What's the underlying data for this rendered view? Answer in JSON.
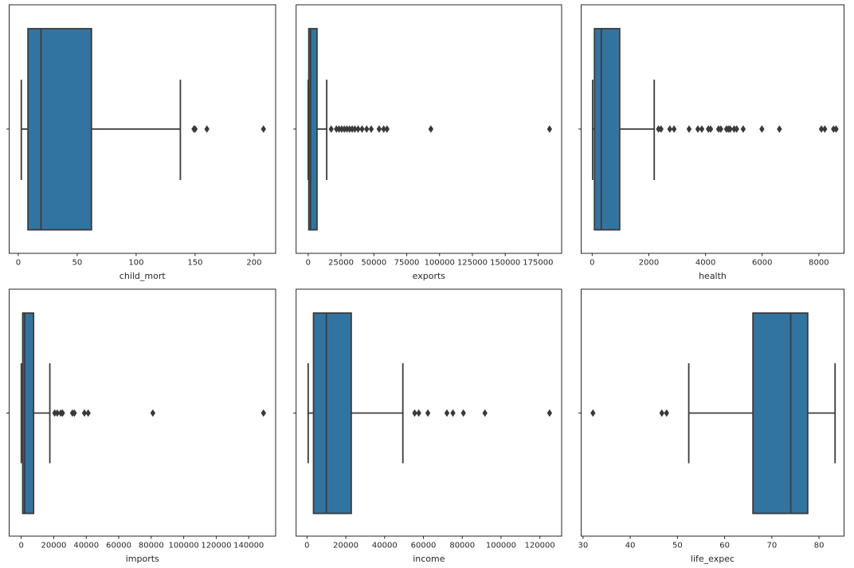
{
  "figure": {
    "background": "#ffffff",
    "grid": {
      "rows": 2,
      "cols": 3
    },
    "colors": {
      "box_fill": "#3274a1",
      "box_edge": "#3b3b3b",
      "whisker": "#3b3b3b",
      "outlier": "#3a3a3a",
      "spine": "#262626",
      "tick_text": "#262626"
    }
  },
  "chart_data": [
    {
      "type": "box",
      "orientation": "horizontal",
      "xlabel": "child_mort",
      "xlim": [
        -7.7,
        218.3
      ],
      "xticks": [
        0,
        50,
        100,
        150,
        200
      ],
      "box": {
        "whisker_low": 2.6,
        "q1": 8.25,
        "median": 19.3,
        "q3": 62.1,
        "whisker_high": 137.5
      },
      "outliers": [
        149,
        150,
        160,
        208
      ]
    },
    {
      "type": "box",
      "orientation": "horizontal",
      "xlabel": "exports",
      "xlim": [
        -9200,
        192950
      ],
      "xticks": [
        0,
        25000,
        50000,
        75000,
        100000,
        125000,
        150000,
        175000
      ],
      "box": {
        "whisker_low": 10,
        "q1": 450,
        "median": 1800,
        "q3": 6700,
        "whisker_high": 14100
      },
      "outliers": [
        17500,
        21500,
        23500,
        25500,
        27500,
        29500,
        31500,
        33500,
        35500,
        38000,
        41000,
        44500,
        48000,
        54000,
        57500,
        60000,
        93400,
        183750
      ]
    },
    {
      "type": "box",
      "orientation": "horizontal",
      "xlabel": "health",
      "xlim": [
        -390,
        8890
      ],
      "xticks": [
        0,
        2000,
        4000,
        6000,
        8000
      ],
      "box": {
        "whisker_low": 15,
        "q1": 80,
        "median": 320,
        "q3": 970,
        "whisker_high": 2190
      },
      "outliers": [
        2340,
        2430,
        2740,
        2890,
        3420,
        3730,
        3870,
        4100,
        4180,
        4460,
        4540,
        4740,
        4810,
        4870,
        5010,
        5100,
        5330,
        5990,
        6610,
        8090,
        8210,
        8520,
        8610
      ]
    },
    {
      "type": "box",
      "orientation": "horizontal",
      "xlabel": "imports",
      "xlim": [
        -7430,
        156560
      ],
      "xticks": [
        0,
        20000,
        40000,
        60000,
        80000,
        100000,
        120000,
        140000
      ],
      "box": {
        "whisker_low": 30,
        "q1": 900,
        "median": 2150,
        "q3": 7600,
        "whisker_high": 17600
      },
      "outliers": [
        20600,
        22200,
        24300,
        25400,
        31500,
        32700,
        38900,
        41200,
        81000,
        149100
      ]
    },
    {
      "type": "box",
      "orientation": "horizontal",
      "xlabel": "income",
      "xlim": [
        -5610,
        131220
      ],
      "xticks": [
        0,
        20000,
        40000,
        60000,
        80000,
        100000,
        120000
      ],
      "box": {
        "whisker_low": 609,
        "q1": 3355,
        "median": 9960,
        "q3": 22800,
        "whisker_high": 49400
      },
      "outliers": [
        55500,
        57600,
        62300,
        72100,
        75200,
        80600,
        91700,
        125000
      ]
    },
    {
      "type": "box",
      "orientation": "horizontal",
      "xlabel": "life_expec",
      "xlim": [
        29.6,
        85.3
      ],
      "xticks": [
        30,
        40,
        50,
        60,
        70,
        80
      ],
      "box": {
        "whisker_low": 52.4,
        "q1": 66.0,
        "median": 74.0,
        "q3": 77.6,
        "whisker_high": 83.4
      },
      "outliers": [
        32.1,
        46.7,
        47.7
      ]
    }
  ]
}
